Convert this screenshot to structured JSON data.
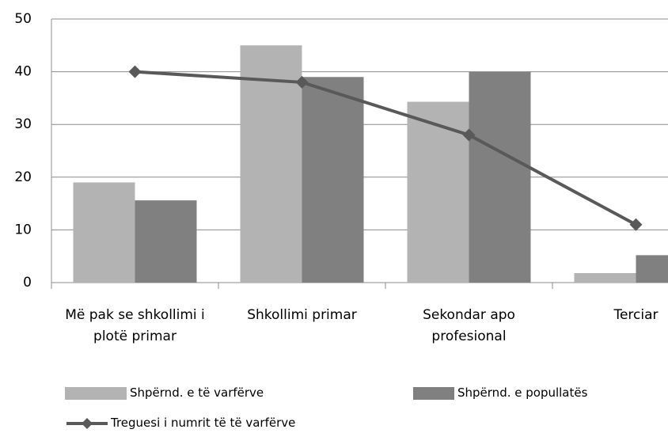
{
  "chart_data": {
    "type": "bar+line",
    "categories": [
      "Më pak se shkollimi i plotë primar",
      "Shkollimi primar",
      "Sekondar apo profesional",
      "Terciar"
    ],
    "series": [
      {
        "name": "Shpërnd. e të varfërve",
        "type": "bar",
        "color": "#b3b3b3",
        "values": [
          19,
          45,
          34.3,
          1.8
        ]
      },
      {
        "name": "Shpërnd. e popullatës",
        "type": "bar",
        "color": "#808080",
        "values": [
          15.6,
          39,
          40,
          5.2
        ]
      },
      {
        "name": "Treguesi i numrit të të varfërve",
        "type": "line",
        "color": "#595959",
        "values": [
          40,
          38,
          28,
          11
        ]
      }
    ],
    "ylim": [
      0,
      50
    ],
    "yticks": [
      0,
      10,
      20,
      30,
      40,
      50
    ],
    "grid": true
  }
}
